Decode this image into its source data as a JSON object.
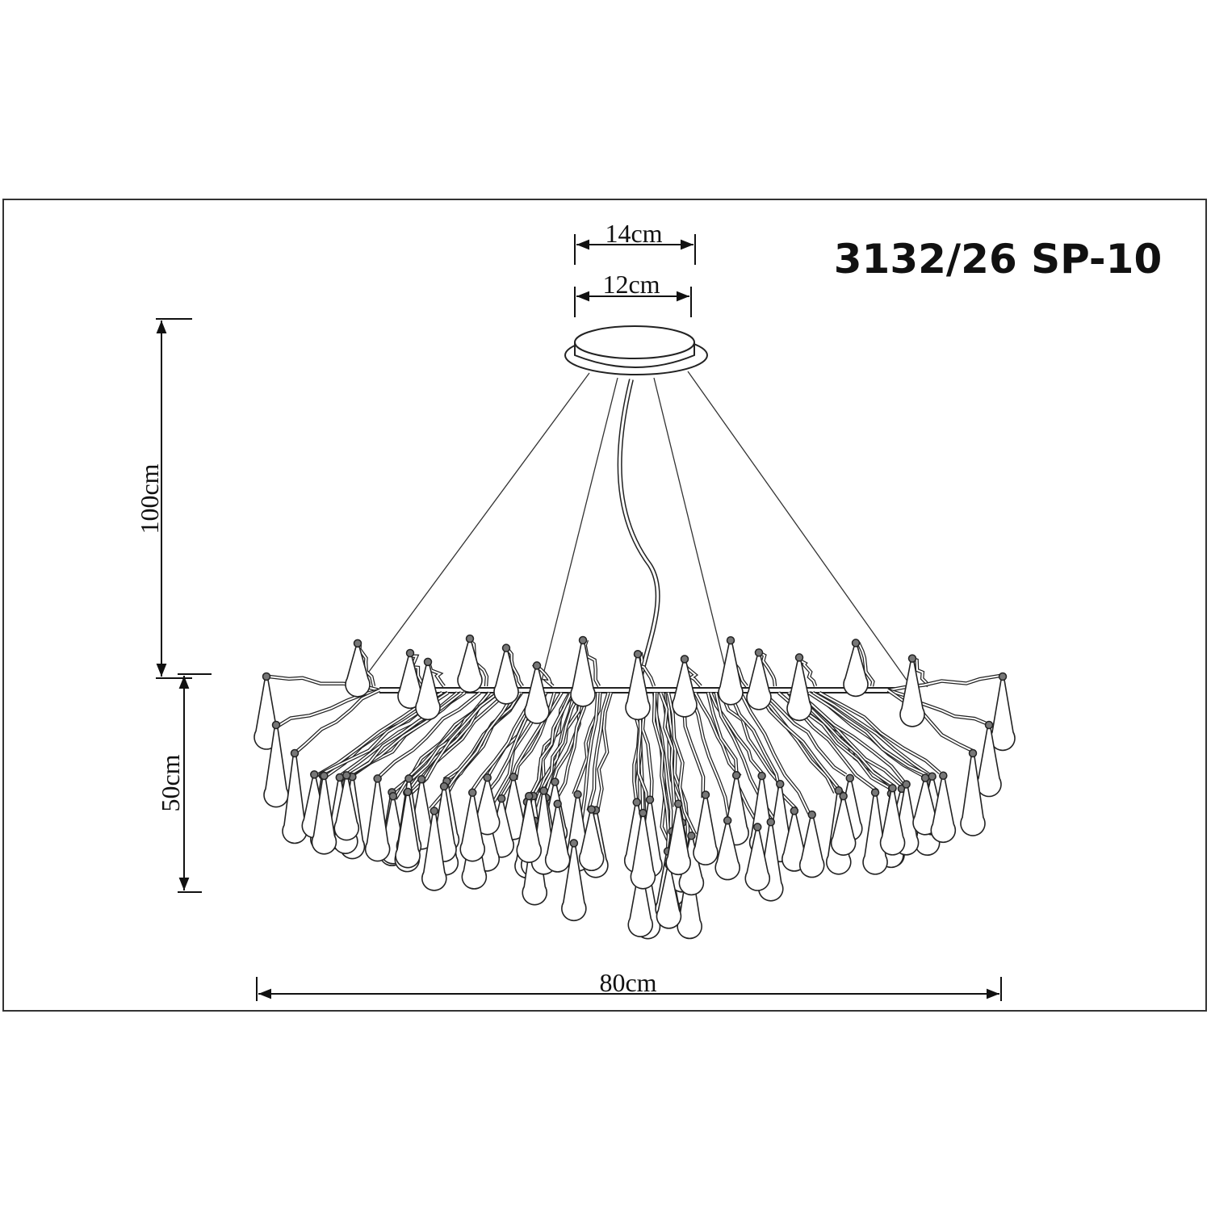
{
  "title": "3132/26 SP-10",
  "dimensions": {
    "canopy_outer": "14cm",
    "canopy_inner": "12cm",
    "suspension_height": "100cm",
    "body_height": "50cm",
    "diameter": "80cm"
  },
  "colors": {
    "line": "#222222",
    "background": "#ffffff"
  }
}
